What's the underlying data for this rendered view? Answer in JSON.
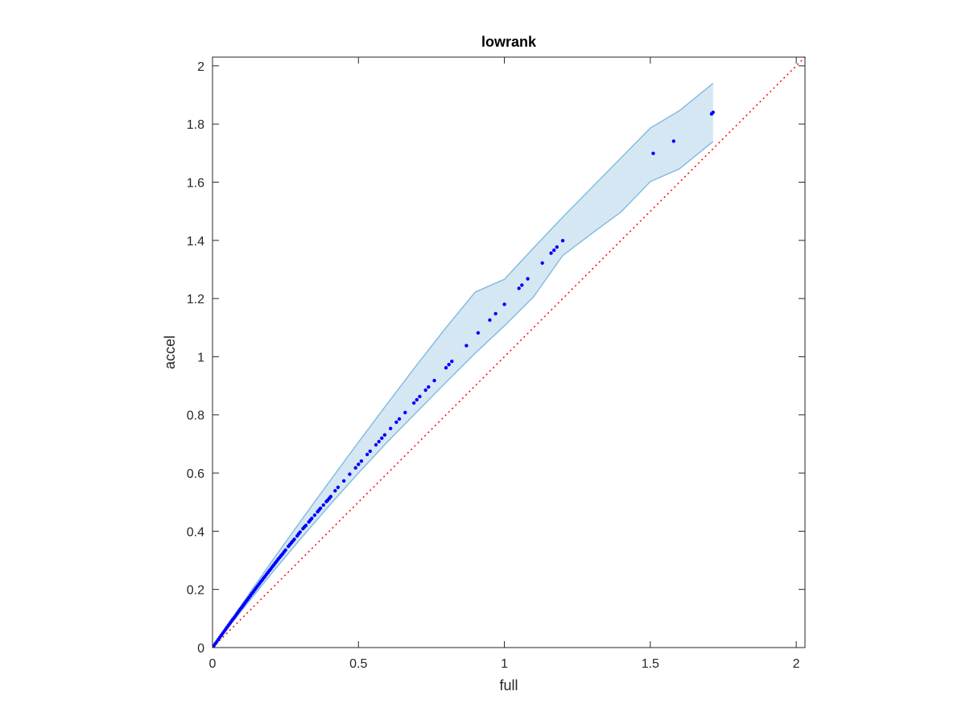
{
  "chart_data": {
    "type": "scatter",
    "title": "lowrank",
    "xlabel": "full",
    "ylabel": "accel",
    "xlim": [
      0,
      2.03
    ],
    "ylim": [
      0,
      2.03
    ],
    "xticks": [
      0,
      0.5,
      1,
      1.5,
      2
    ],
    "yticks": [
      0,
      0.2,
      0.4,
      0.6,
      0.8,
      1,
      1.2,
      1.4,
      1.6,
      1.8,
      2
    ],
    "xtick_labels": [
      "0",
      "0.5",
      "1",
      "1.5",
      "2"
    ],
    "ytick_labels": [
      "0",
      "0.2",
      "0.4",
      "0.6",
      "0.8",
      "1",
      "1.2",
      "1.4",
      "1.6",
      "1.8",
      "2"
    ],
    "grid": false,
    "colors": {
      "points": "#0000ff",
      "band_fill": "#d6e7f4",
      "band_edge": "#85bde0",
      "reference_line": "#ff0000",
      "axes": "#262626"
    },
    "reference_line": {
      "x": [
        0,
        2.03
      ],
      "y": [
        0,
        2.03
      ],
      "style": "dotted"
    },
    "points": {
      "x": [
        0.005,
        0.01,
        0.015,
        0.02,
        0.025,
        0.03,
        0.035,
        0.04,
        0.045,
        0.05,
        0.055,
        0.06,
        0.065,
        0.07,
        0.075,
        0.08,
        0.085,
        0.09,
        0.095,
        0.1,
        0.105,
        0.11,
        0.115,
        0.12,
        0.125,
        0.13,
        0.135,
        0.14,
        0.145,
        0.15,
        0.155,
        0.16,
        0.165,
        0.17,
        0.175,
        0.18,
        0.185,
        0.19,
        0.195,
        0.2,
        0.205,
        0.21,
        0.215,
        0.22,
        0.225,
        0.23,
        0.235,
        0.24,
        0.245,
        0.25,
        0.26,
        0.265,
        0.27,
        0.275,
        0.28,
        0.29,
        0.295,
        0.3,
        0.31,
        0.315,
        0.32,
        0.33,
        0.335,
        0.34,
        0.35,
        0.36,
        0.365,
        0.37,
        0.38,
        0.39,
        0.395,
        0.4,
        0.405,
        0.42,
        0.43,
        0.45,
        0.47,
        0.49,
        0.5,
        0.51,
        0.53,
        0.54,
        0.56,
        0.57,
        0.58,
        0.59,
        0.61,
        0.63,
        0.64,
        0.66,
        0.69,
        0.7,
        0.71,
        0.73,
        0.74,
        0.76,
        0.8,
        0.81,
        0.82,
        0.87,
        0.91,
        0.95,
        0.97,
        1.0,
        1.05,
        1.06,
        1.08,
        1.13,
        1.16,
        1.17,
        1.18,
        1.2,
        1.51,
        1.58,
        1.71,
        1.715
      ],
      "y": [
        0.007,
        0.014,
        0.021,
        0.028,
        0.035,
        0.042,
        0.049,
        0.056,
        0.063,
        0.07,
        0.077,
        0.084,
        0.091,
        0.098,
        0.104,
        0.111,
        0.118,
        0.125,
        0.132,
        0.138,
        0.145,
        0.152,
        0.159,
        0.165,
        0.172,
        0.179,
        0.186,
        0.192,
        0.199,
        0.206,
        0.212,
        0.219,
        0.226,
        0.232,
        0.239,
        0.245,
        0.252,
        0.258,
        0.265,
        0.271,
        0.278,
        0.284,
        0.291,
        0.297,
        0.304,
        0.31,
        0.316,
        0.322,
        0.329,
        0.335,
        0.348,
        0.354,
        0.36,
        0.366,
        0.372,
        0.384,
        0.391,
        0.397,
        0.409,
        0.415,
        0.42,
        0.432,
        0.438,
        0.444,
        0.455,
        0.467,
        0.473,
        0.479,
        0.49,
        0.502,
        0.507,
        0.513,
        0.519,
        0.539,
        0.551,
        0.573,
        0.596,
        0.618,
        0.63,
        0.641,
        0.664,
        0.675,
        0.697,
        0.708,
        0.72,
        0.731,
        0.753,
        0.775,
        0.786,
        0.808,
        0.841,
        0.852,
        0.863,
        0.885,
        0.896,
        0.918,
        0.962,
        0.973,
        0.984,
        1.038,
        1.082,
        1.126,
        1.148,
        1.18,
        1.235,
        1.246,
        1.268,
        1.322,
        1.356,
        1.366,
        1.377,
        1.399,
        1.699,
        1.741,
        1.835,
        1.84
      ]
    },
    "band": {
      "x": [
        0,
        0.1,
        0.2,
        0.3,
        0.4,
        0.5,
        0.6,
        0.7,
        0.8,
        0.9,
        1.0,
        1.1,
        1.2,
        1.3,
        1.4,
        1.5,
        1.6,
        1.715
      ],
      "upper": [
        0,
        0.148,
        0.292,
        0.432,
        0.57,
        0.706,
        0.84,
        0.972,
        1.1,
        1.222,
        1.266,
        1.374,
        1.48,
        1.582,
        1.684,
        1.786,
        1.846,
        1.94
      ],
      "lower": [
        0,
        0.128,
        0.252,
        0.372,
        0.488,
        0.6,
        0.708,
        0.81,
        0.912,
        1.012,
        1.106,
        1.206,
        1.348,
        1.424,
        1.498,
        1.602,
        1.646,
        1.74
      ]
    }
  }
}
